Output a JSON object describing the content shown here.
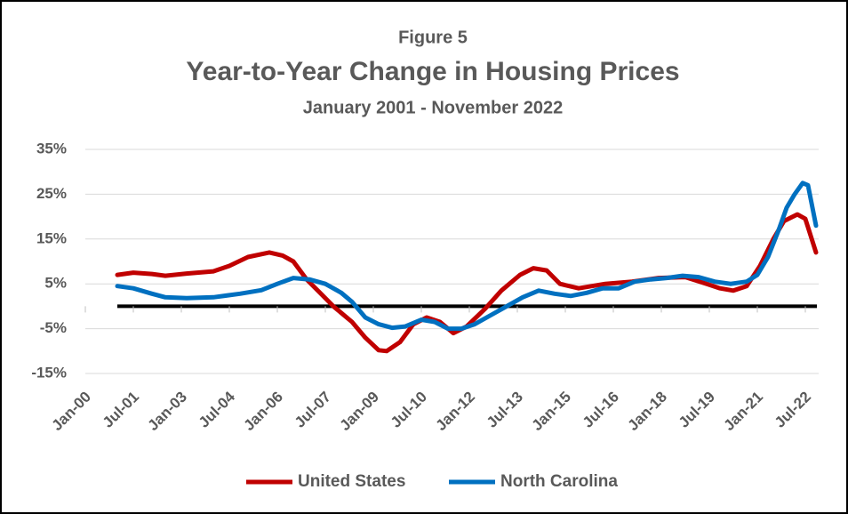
{
  "chart_data": {
    "type": "line",
    "figure_label": "Figure 5",
    "title": "Year-to-Year Change in Housing Prices",
    "subtitle": "January 2001 - November 2022",
    "xlim": [
      "Jan-00",
      "Dec-22"
    ],
    "xticks": [
      "Jan-00",
      "Jul-01",
      "Jan-03",
      "Jul-04",
      "Jan-06",
      "Jul-07",
      "Jan-09",
      "Jul-10",
      "Jan-12",
      "Jul-13",
      "Jan-15",
      "Jul-16",
      "Jan-18",
      "Jul-19",
      "Jan-21",
      "Jul-22"
    ],
    "ylim": [
      -15,
      35
    ],
    "yticks": [
      {
        "value": -15,
        "label": "-15%"
      },
      {
        "value": -5,
        "label": "-5%"
      },
      {
        "value": 5,
        "label": "5%"
      },
      {
        "value": 15,
        "label": "15%"
      },
      {
        "value": 25,
        "label": "25%"
      },
      {
        "value": 35,
        "label": "35%"
      }
    ],
    "grid": true,
    "legend": "bottom",
    "series": [
      {
        "name": "United States",
        "color": "#c00000",
        "x": [
          "Jan-01",
          "Jul-01",
          "Feb-02",
          "Jul-02",
          "Mar-03",
          "Jan-04",
          "Jul-04",
          "Feb-05",
          "Oct-05",
          "Mar-06",
          "Jul-06",
          "Dec-06",
          "May-07",
          "Oct-07",
          "May-08",
          "Oct-08",
          "Mar-09",
          "Jun-09",
          "Nov-09",
          "Apr-10",
          "Sep-10",
          "Feb-11",
          "Jul-11",
          "Dec-11",
          "Jul-12",
          "Jan-13",
          "Aug-13",
          "Jan-14",
          "Jun-14",
          "Nov-14",
          "Jun-15",
          "Apr-16",
          "Feb-17",
          "Dec-17",
          "Oct-18",
          "Jun-19",
          "Nov-19",
          "Apr-20",
          "Sep-20",
          "Feb-21",
          "Jul-21",
          "Nov-21",
          "Apr-22",
          "Jul-22",
          "Nov-22"
        ],
        "values": [
          7,
          7.5,
          7.2,
          6.8,
          7.3,
          7.8,
          9,
          11,
          12,
          11.3,
          10,
          6,
          3,
          0,
          -3.5,
          -7,
          -9.8,
          -10,
          -8,
          -4,
          -2.5,
          -3.5,
          -6,
          -4.5,
          -0.5,
          3.5,
          7,
          8.5,
          8,
          5,
          4,
          5,
          5.5,
          6.3,
          6.5,
          5,
          4,
          3.5,
          4.5,
          9,
          15,
          19,
          20.5,
          19.5,
          12
        ]
      },
      {
        "name": "North Carolina",
        "color": "#0070c0",
        "x": [
          "Jan-01",
          "Jul-01",
          "Feb-02",
          "Jul-02",
          "Mar-03",
          "Jan-04",
          "Nov-04",
          "Jul-05",
          "Jan-06",
          "Jul-06",
          "Jan-07",
          "Jul-07",
          "Jan-08",
          "May-08",
          "Oct-08",
          "Mar-09",
          "Aug-09",
          "Jan-10",
          "Jul-10",
          "Dec-10",
          "May-11",
          "Oct-11",
          "Mar-12",
          "Sep-12",
          "Mar-13",
          "Sep-13",
          "Mar-14",
          "Sep-14",
          "Mar-15",
          "Sep-15",
          "Mar-16",
          "Sep-16",
          "Mar-17",
          "Sep-17",
          "Mar-18",
          "Sep-18",
          "Mar-19",
          "Sep-19",
          "Mar-20",
          "Sep-20",
          "Jan-21",
          "May-21",
          "Sep-21",
          "Dec-21",
          "Mar-22",
          "Jun-22",
          "Aug-22",
          "Nov-22"
        ],
        "values": [
          4.5,
          4,
          2.8,
          2,
          1.8,
          2,
          2.8,
          3.6,
          5,
          6.3,
          6,
          5,
          3,
          1,
          -2.5,
          -4,
          -4.8,
          -4.5,
          -3,
          -3.5,
          -5,
          -5,
          -4,
          -2,
          0,
          2,
          3.5,
          2.8,
          2.3,
          3,
          4,
          4,
          5.5,
          6,
          6.3,
          6.8,
          6.5,
          5.5,
          5,
          5.5,
          7,
          11,
          17,
          22,
          25,
          27.5,
          27,
          18
        ]
      }
    ]
  }
}
